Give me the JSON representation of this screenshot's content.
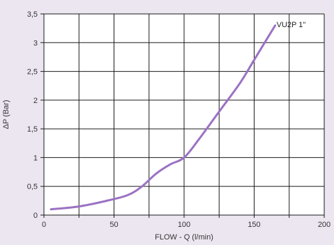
{
  "chart_data": {
    "type": "line",
    "title": "",
    "xlabel": "FLOW - Q (l/min)",
    "ylabel": "ΔP (Bar)",
    "xlim": [
      0,
      200
    ],
    "ylim": [
      0,
      3.5
    ],
    "xticks": [
      0,
      25,
      50,
      75,
      100,
      125,
      150,
      175,
      200
    ],
    "xtick_labels": [
      "0",
      "",
      "50",
      "",
      "100",
      "",
      "150",
      "",
      "200"
    ],
    "yticks": [
      0,
      0.5,
      1,
      1.5,
      2,
      2.5,
      3,
      3.5
    ],
    "ytick_labels": [
      "0",
      "0,5",
      "1",
      "1,5",
      "2",
      "2,5",
      "3",
      "3,5"
    ],
    "grid": true,
    "series": [
      {
        "name": "VU2P 1\"",
        "color": "#9b72c3",
        "x": [
          5,
          25,
          45,
          60,
          70,
          80,
          90,
          100,
          110,
          125,
          140,
          150,
          165
        ],
        "y": [
          0.1,
          0.15,
          0.25,
          0.35,
          0.5,
          0.72,
          0.88,
          1.0,
          1.3,
          1.8,
          2.3,
          2.7,
          3.3
        ]
      }
    ]
  },
  "colors": {
    "background": "#ece6f1",
    "plot_background": "#ffffff",
    "grid": "#1a1a1a",
    "line": "#9b72c3"
  }
}
